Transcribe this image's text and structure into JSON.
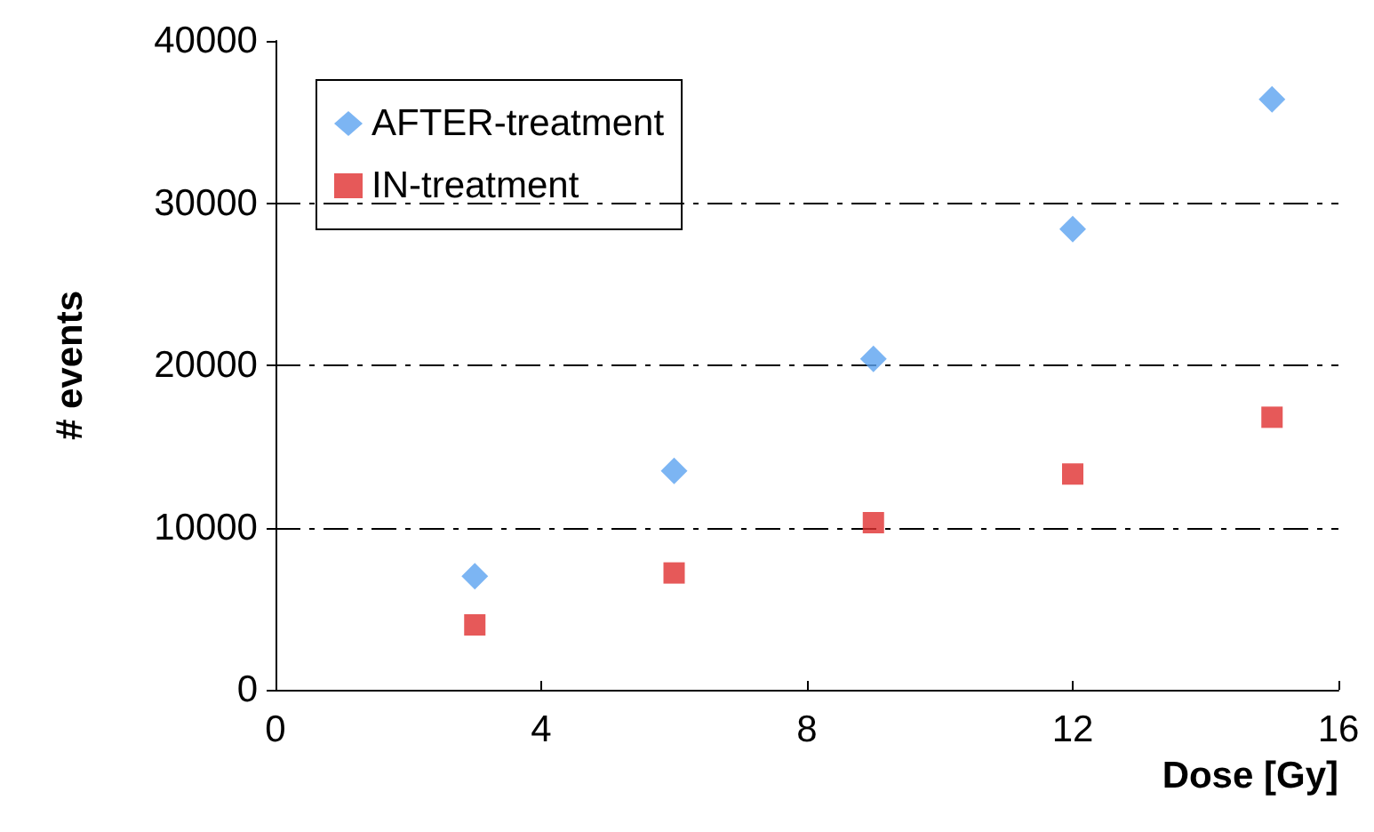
{
  "chart_data": {
    "type": "scatter",
    "xlabel": "Dose [Gy]",
    "ylabel": "# events",
    "xlim": [
      0,
      16
    ],
    "xticks": [
      0,
      4,
      8,
      12,
      16
    ],
    "ylim": [
      0,
      40000
    ],
    "yticks": [
      0,
      10000,
      20000,
      30000,
      40000
    ],
    "grid": "y",
    "legend": "top left",
    "series": [
      {
        "name": "AFTER-treatment",
        "color": "#5ba3f0",
        "marker": "diamond",
        "x": [
          3,
          6,
          9,
          12,
          15
        ],
        "values": [
          7000,
          13500,
          20400,
          28400,
          36400
        ]
      },
      {
        "name": "IN-treatment",
        "color": "#e03030",
        "marker": "square",
        "x": [
          3,
          6,
          9,
          12,
          15
        ],
        "values": [
          4000,
          7200,
          10300,
          13300,
          16800
        ]
      }
    ]
  }
}
